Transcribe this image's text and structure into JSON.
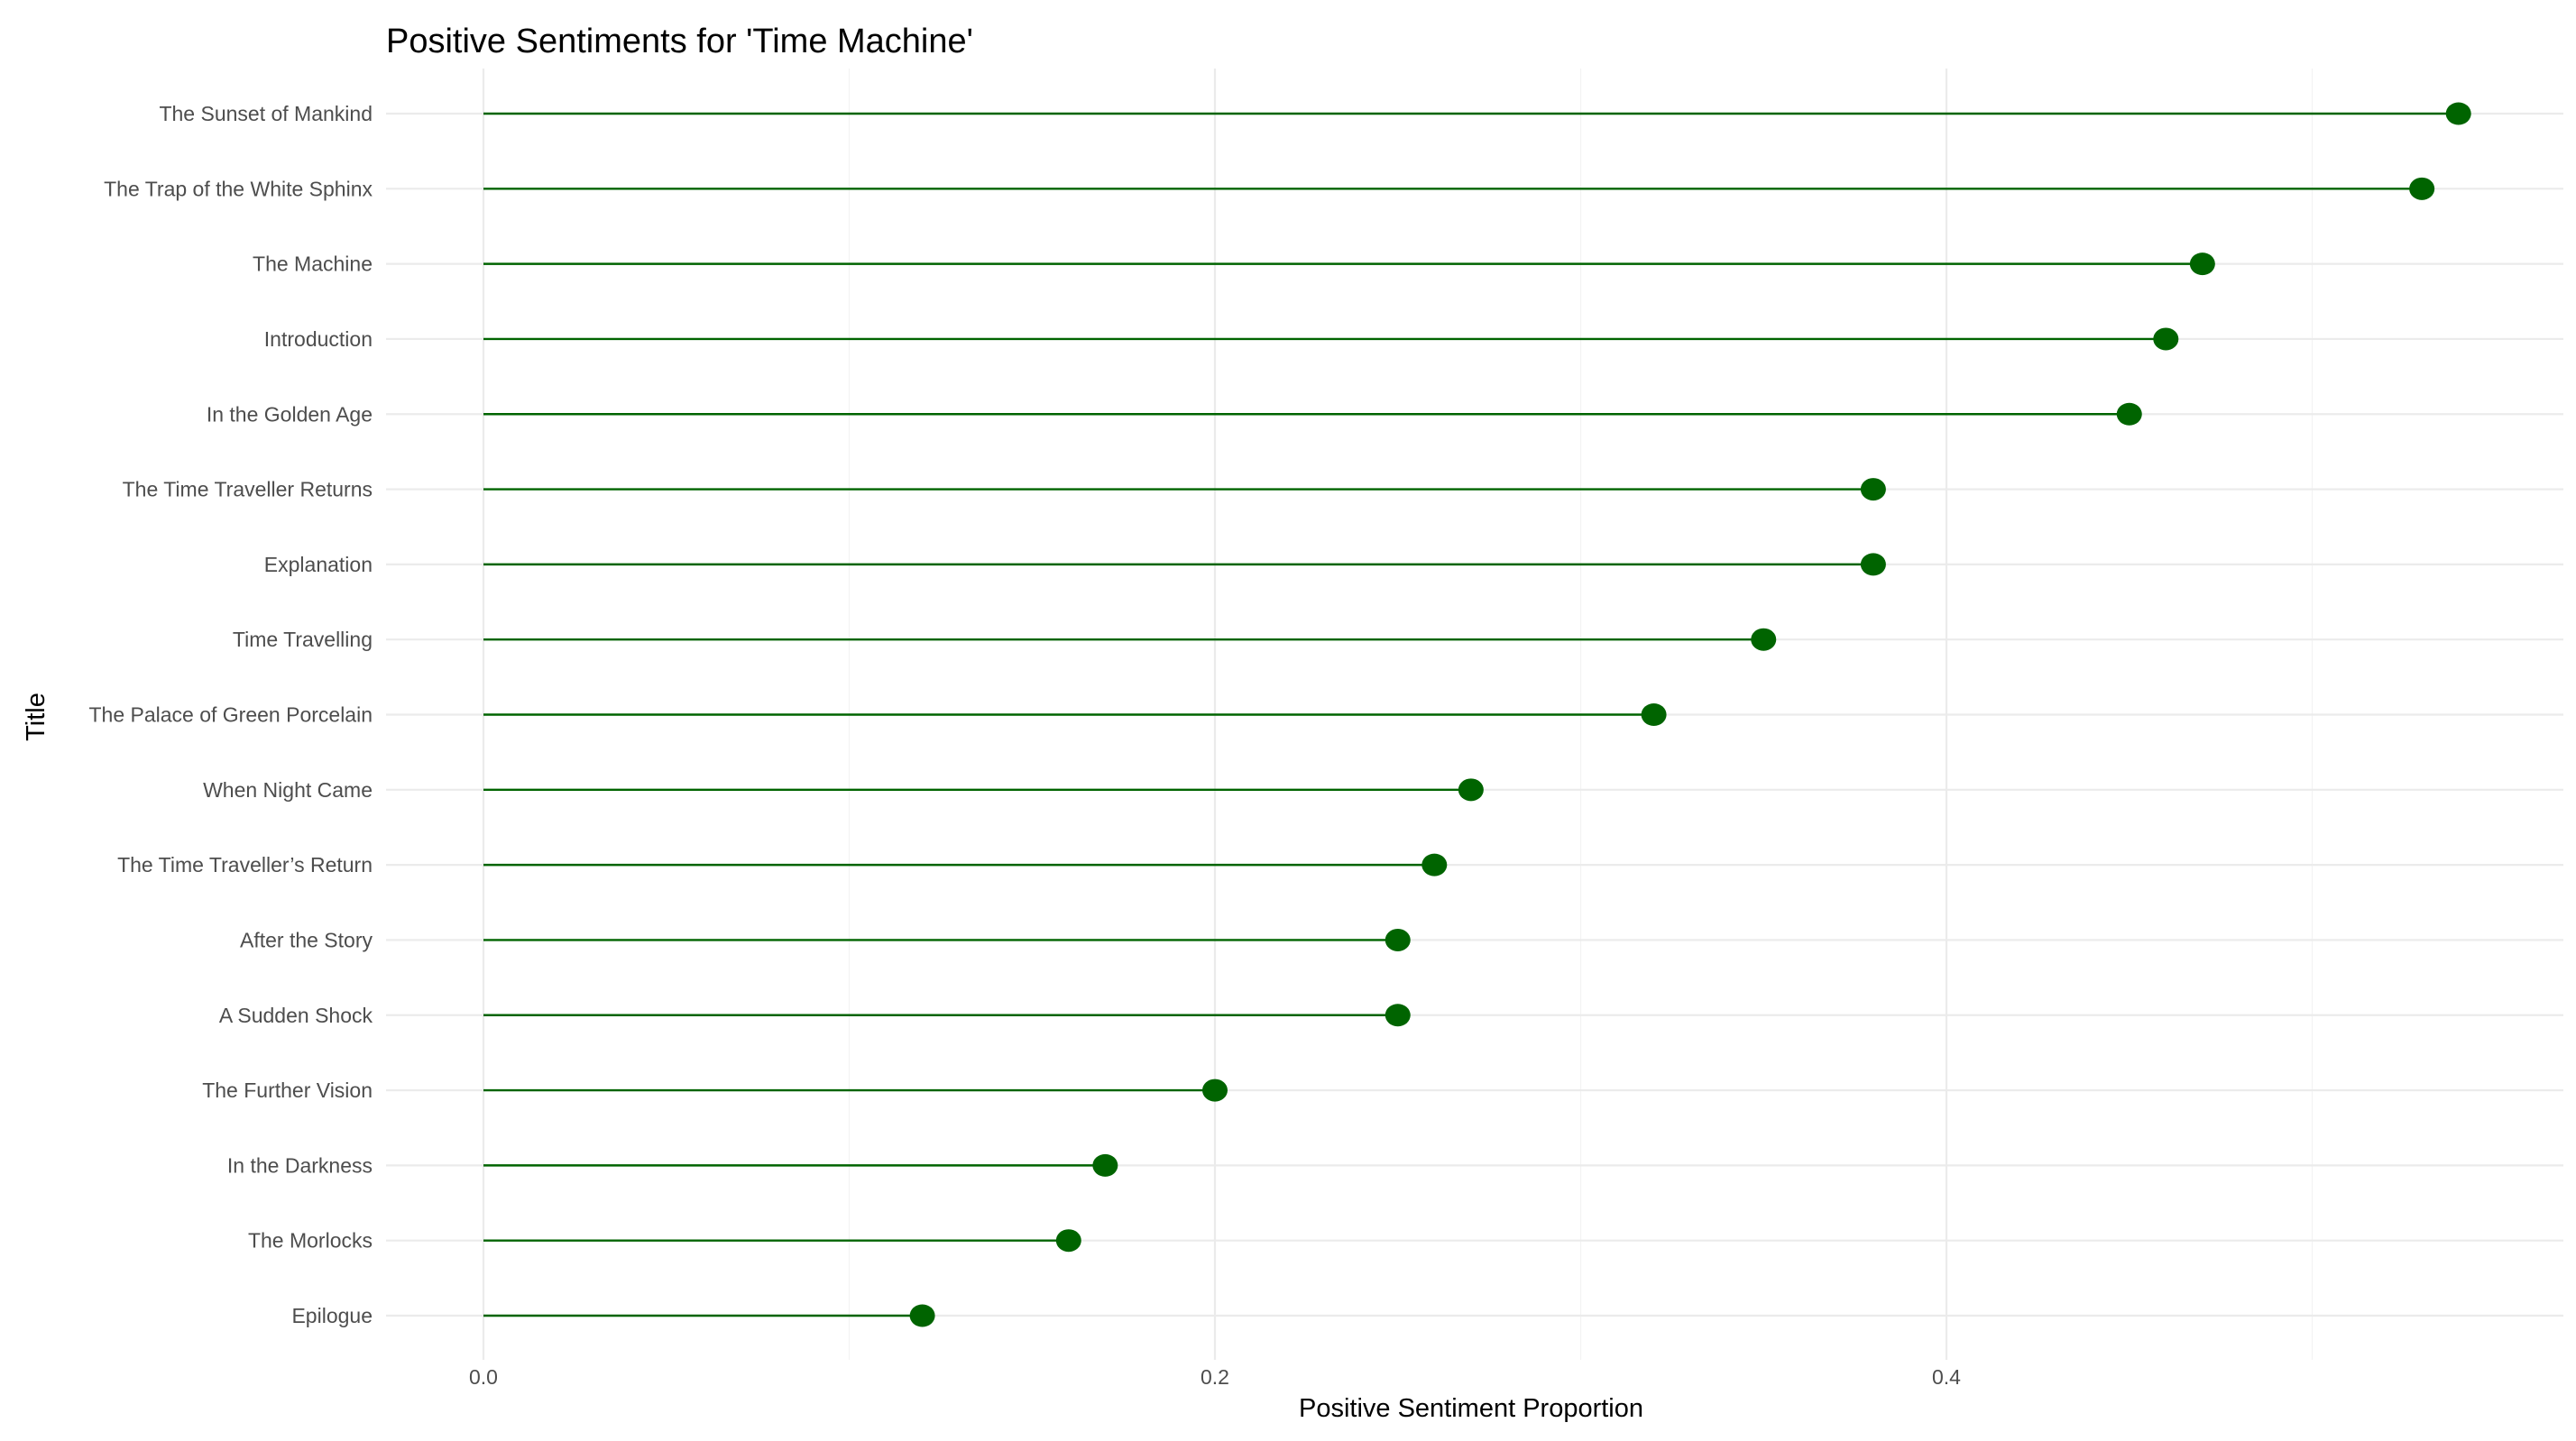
{
  "chart_data": {
    "type": "lollipop",
    "title": "Positive Sentiments for 'Time Machine'",
    "xlabel": "Positive Sentiment Proportion",
    "ylabel": "Title",
    "xlim": [
      -0.027,
      0.567
    ],
    "xticks": [
      0.0,
      0.2,
      0.4
    ],
    "xtick_labels": [
      "0.0",
      "0.2",
      "0.4"
    ],
    "minor_xticks": [
      0.1,
      0.3,
      0.5
    ],
    "grid": true,
    "color": "#006400",
    "categories": [
      "The Sunset of Mankind",
      "The Trap of the White Sphinx",
      "The Machine",
      "Introduction",
      "In the Golden Age",
      "The Time Traveller Returns",
      "Explanation",
      "Time Travelling",
      "The Palace of Green Porcelain",
      "When Night Came",
      "The Time Traveller’s Return",
      "After the Story",
      "A Sudden Shock",
      "The Further Vision",
      "In the Darkness",
      "The Morlocks",
      "Epilogue"
    ],
    "values": [
      0.54,
      0.53,
      0.47,
      0.46,
      0.45,
      0.38,
      0.38,
      0.35,
      0.32,
      0.27,
      0.26,
      0.25,
      0.25,
      0.2,
      0.17,
      0.16,
      0.12
    ]
  }
}
